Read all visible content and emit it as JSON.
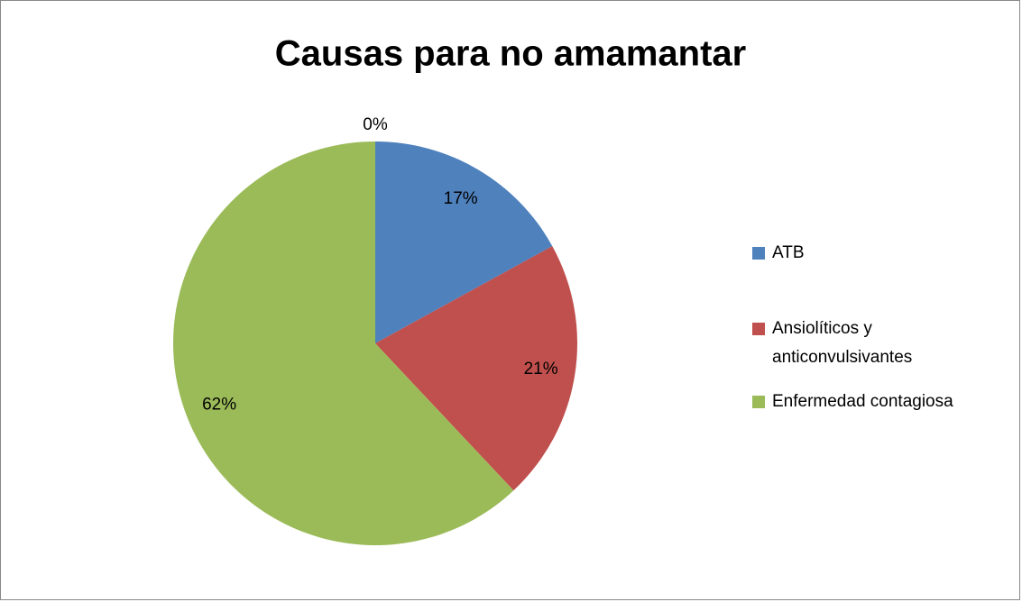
{
  "chart_data": {
    "type": "pie",
    "title": "Causas para no amamantar",
    "categories": [
      "ATB",
      "Ansiolíticos y anticonvulsivantes",
      "Enfermedad contagiosa",
      null
    ],
    "values": [
      17,
      21,
      62,
      0
    ],
    "value_labels": [
      "17%",
      "21%",
      "62%",
      "0%"
    ],
    "colors": [
      "#4f81bd",
      "#c0504d",
      "#9bbb59",
      "#8064a2"
    ],
    "legend": "right"
  }
}
